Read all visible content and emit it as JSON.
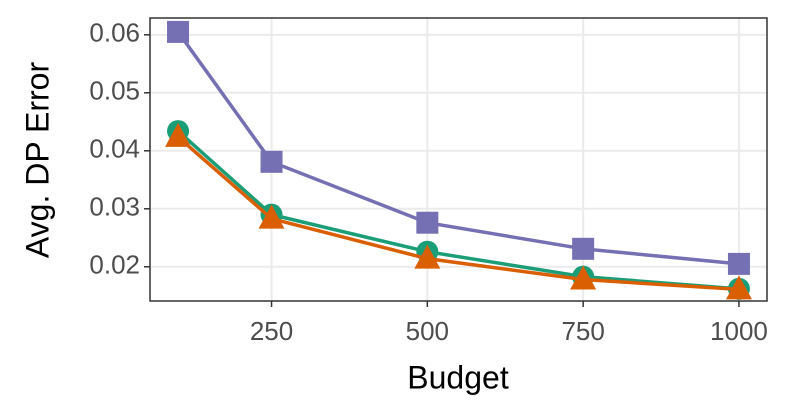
{
  "chart_data": {
    "type": "line",
    "x_label": "Budget",
    "y_label": "Avg. DP Error",
    "x": [
      100,
      250,
      500,
      750,
      1000
    ],
    "series": [
      {
        "color": "#7570b3",
        "marker": "square",
        "values": [
          0.0605,
          0.0381,
          0.0276,
          0.0231,
          0.0205
        ]
      },
      {
        "color": "#1b9e77",
        "marker": "circle",
        "values": [
          0.0434,
          0.029,
          0.0226,
          0.0183,
          0.0162
        ]
      },
      {
        "color": "#d95f02",
        "marker": "triangle",
        "values": [
          0.0424,
          0.0283,
          0.0214,
          0.0178,
          0.0161
        ]
      }
    ],
    "xlim": [
      55,
      1045
    ],
    "xticks": [
      250,
      500,
      750,
      1000
    ],
    "ylim": [
      0.0141,
      0.0629
    ],
    "yticks": [
      0.02,
      0.03,
      0.04,
      0.05,
      0.06
    ],
    "grid": true
  }
}
